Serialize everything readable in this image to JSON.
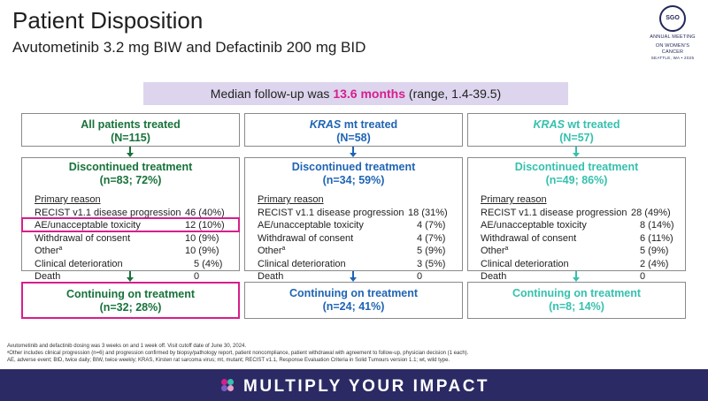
{
  "header": {
    "title": "Patient Disposition",
    "subtitle": "Avutometinib 3.2 mg BIW and Defactinib 200 mg BID"
  },
  "logo": {
    "mark": "SGO",
    "line1": "ANNUAL MEETING",
    "line2": "ON WOMEN'S CANCER",
    "line3": "SEATTLE, WA • 2025"
  },
  "followup": {
    "prefix": "Median follow-up was ",
    "highlight": "13.6 months",
    "suffix": " (range, 1.4-39.5)"
  },
  "columns": [
    {
      "title": "All patients treated",
      "title_prefix": "",
      "n": "(N=115)",
      "discontinued_label": "Discontinued treatment",
      "discontinued_n": "(n=83; 72%)",
      "primary_reason_label": "Primary reason",
      "reasons": [
        {
          "label": "RECIST v1.1 disease progression",
          "value": "46 (40%)"
        },
        {
          "label": "AE/unacceptable toxicity",
          "value": "12 (10%)"
        },
        {
          "label": "Withdrawal of consent",
          "value": "10 (9%)"
        },
        {
          "label": "Other",
          "sup": "a",
          "value": "10 (9%)"
        },
        {
          "label": "Clinical deterioration",
          "value": "5 (4%)"
        },
        {
          "label": "Death",
          "value": "0"
        }
      ],
      "continuing_label": "Continuing on treatment",
      "continuing_n": "(n=32; 28%)"
    },
    {
      "title": "mt treated",
      "title_prefix": "KRAS",
      "n": "(N=58)",
      "discontinued_label": "Discontinued treatment",
      "discontinued_n": "(n=34; 59%)",
      "primary_reason_label": "Primary reason",
      "reasons": [
        {
          "label": "RECIST v1.1 disease progression",
          "value": "18 (31%)"
        },
        {
          "label": "AE/unacceptable toxicity",
          "value": "4 (7%)"
        },
        {
          "label": "Withdrawal of consent",
          "value": "4 (7%)"
        },
        {
          "label": "Other",
          "sup": "a",
          "value": "5 (9%)"
        },
        {
          "label": "Clinical deterioration",
          "value": "3 (5%)"
        },
        {
          "label": "Death",
          "value": "0"
        }
      ],
      "continuing_label": "Continuing on treatment",
      "continuing_n": "(n=24; 41%)"
    },
    {
      "title": "wt treated",
      "title_prefix": "KRAS",
      "n": "(N=57)",
      "discontinued_label": "Discontinued treatment",
      "discontinued_n": "(n=49; 86%)",
      "primary_reason_label": "Primary reason",
      "reasons": [
        {
          "label": "RECIST v1.1 disease progression",
          "value": "28 (49%)"
        },
        {
          "label": "AE/unacceptable toxicity",
          "value": "8 (14%)"
        },
        {
          "label": "Withdrawal of consent",
          "value": "6 (11%)"
        },
        {
          "label": "Other",
          "sup": "a",
          "value": "5 (9%)"
        },
        {
          "label": "Clinical deterioration",
          "value": "2 (4%)"
        },
        {
          "label": "Death",
          "value": "0"
        }
      ],
      "continuing_label": "Continuing on treatment",
      "continuing_n": "(n=8; 14%)"
    }
  ],
  "footnotes": {
    "line1": "Avutometinib and defactinib dosing was 3 weeks on and 1 week off. Visit cutoff date of June 30, 2024.",
    "line2": "ᵃOther includes clinical progression (n=6) and progression confirmed by biopsy/pathology report, patient noncompliance, patient withdrawal with agreement to follow-up, physician decision (1 each).",
    "line3": "AE, adverse event; BID, twice daily; BIW, twice weekly; KRAS, Kirsten rat sarcoma virus; mt, mutant; RECIST v1.1, Response Evaluation Criteria in Solid Tumours version 1.1; wt, wild type."
  },
  "banner": {
    "text": "MULTIPLY YOUR IMPACT"
  },
  "colors": {
    "green": "#17723a",
    "blue": "#1f64b4",
    "teal": "#35c1ae",
    "magenta": "#d61f8c",
    "banner": "#2b2a64"
  }
}
